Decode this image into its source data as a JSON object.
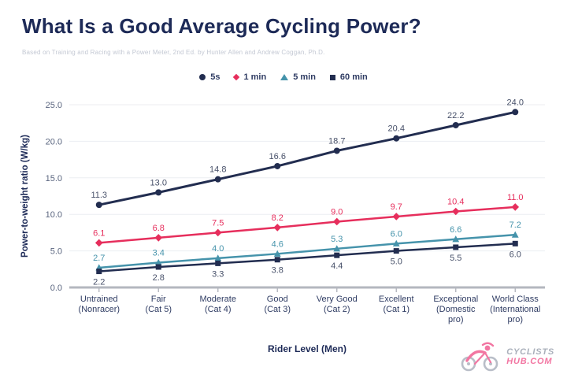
{
  "header": {
    "title": "What Is a Good Average Cycling Power?",
    "subtitle": "Based on Training and Racing with a Power Meter, 2nd Ed. by Hunter Allen and Andrew Coggan, Ph.D."
  },
  "legend": {
    "items": [
      {
        "label": "5s",
        "marker": "circle",
        "color": "#222d50"
      },
      {
        "label": "1 min",
        "marker": "diamond",
        "color": "#e62e5c"
      },
      {
        "label": "5 min",
        "marker": "triangle",
        "color": "#4593ab"
      },
      {
        "label": "60 min",
        "marker": "square",
        "color": "#222d50"
      }
    ]
  },
  "chart_data": {
    "type": "line",
    "title": "What Is a Good Average Cycling Power?",
    "xlabel": "Rider Level (Men)",
    "ylabel": "Power-to-weight ratio (W/kg)",
    "ylim": [
      0,
      25
    ],
    "ytick_step": 5,
    "ytick_labels": [
      "0.0",
      "5.0",
      "10.0",
      "15.0",
      "20.0",
      "25.0"
    ],
    "grid": true,
    "legend_position": "top",
    "categories": [
      [
        "Untrained",
        "(Nonracer)"
      ],
      [
        "Fair",
        "(Cat 5)"
      ],
      [
        "Moderate",
        "(Cat 4)"
      ],
      [
        "Good",
        "(Cat 3)"
      ],
      [
        "Very Good",
        "(Cat 2)"
      ],
      [
        "Excellent",
        "(Cat 1)"
      ],
      [
        "Exceptional",
        "(Domestic",
        "pro)"
      ],
      [
        "World Class",
        "(International",
        "pro)"
      ]
    ],
    "series": [
      {
        "name": "5s",
        "color": "#222d50",
        "label_color": "#475069",
        "marker": "circle",
        "label_position": "above",
        "values": [
          11.3,
          13.0,
          14.8,
          16.6,
          18.7,
          20.4,
          22.2,
          24.0
        ]
      },
      {
        "name": "1 min",
        "color": "#e62e5c",
        "label_color": "#e62e5c",
        "marker": "diamond",
        "label_position": "above",
        "values": [
          6.1,
          6.8,
          7.5,
          8.2,
          9.0,
          9.7,
          10.4,
          11.0
        ]
      },
      {
        "name": "5 min",
        "color": "#4593ab",
        "label_color": "#4593ab",
        "marker": "triangle",
        "label_position": "above",
        "values": [
          2.7,
          3.4,
          4.0,
          4.6,
          5.3,
          6.0,
          6.6,
          7.2
        ]
      },
      {
        "name": "60 min",
        "color": "#222d50",
        "label_color": "#475069",
        "marker": "square",
        "label_position": "below",
        "values": [
          2.2,
          2.8,
          3.3,
          3.8,
          4.4,
          5.0,
          5.5,
          6.0
        ]
      }
    ]
  },
  "colors": {
    "title": "#1d2a57",
    "subtitle": "#c3c8d3",
    "grid": "#eceef2",
    "axis_line": "#b4b7bf",
    "ytick_text": "#5a657f",
    "xtick_text": "#2f3c63"
  },
  "logo": {
    "line1": "CYCLISTS",
    "line2": "HUB.COM",
    "icon": "cyclist-bicycle-icon",
    "accent": "#f276a2",
    "gray": "#b9bec8"
  }
}
